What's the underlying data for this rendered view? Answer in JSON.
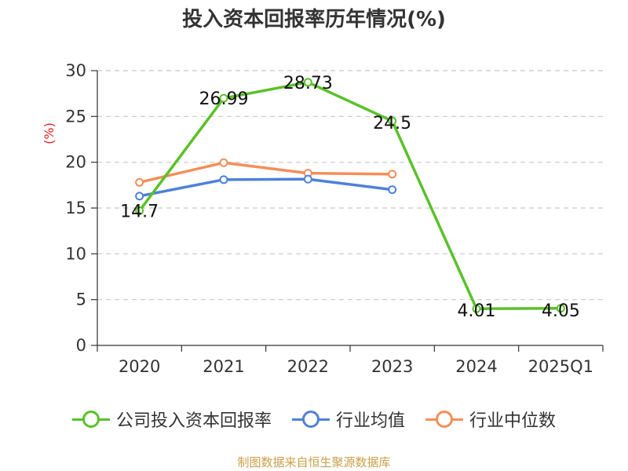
{
  "chart_data": {
    "type": "line",
    "title": "投入资本回报率历年情况(%)",
    "ylabel": "(%)",
    "categories": [
      "2020",
      "2021",
      "2022",
      "2023",
      "2024",
      "2025Q1"
    ],
    "ylim": [
      0,
      30
    ],
    "yticks": [
      0,
      5,
      10,
      15,
      20,
      25,
      30
    ],
    "grid": true,
    "legend_position": "bottom",
    "series": [
      {
        "name": "公司投入资本回报率",
        "color": "#5ac129",
        "values": [
          14.7,
          26.99,
          28.73,
          24.5,
          4.01,
          4.05
        ],
        "labels": [
          "14.7",
          "26.99",
          "28.73",
          "24.5",
          "4.01",
          "4.05"
        ]
      },
      {
        "name": "行业均值",
        "color": "#4f81d8",
        "values": [
          16.3,
          18.1,
          18.15,
          17.0,
          null,
          null
        ]
      },
      {
        "name": "行业中位数",
        "color": "#f58e5a",
        "values": [
          17.8,
          19.95,
          18.8,
          18.7,
          null,
          null
        ]
      }
    ]
  },
  "footer": "制图数据来自恒生聚源数据库"
}
